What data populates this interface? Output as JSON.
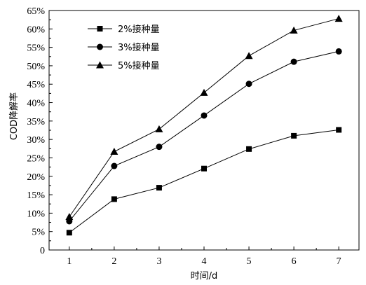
{
  "chart_data": {
    "type": "line",
    "title": "",
    "xlabel": "时间/d",
    "ylabel": "COD降解率",
    "x": [
      1,
      2,
      3,
      4,
      5,
      6,
      7
    ],
    "xlim": [
      0.55,
      7.45
    ],
    "ylim": [
      0,
      65
    ],
    "y_ticks": [
      0,
      5,
      10,
      15,
      20,
      25,
      30,
      35,
      40,
      45,
      50,
      55,
      60,
      65
    ],
    "y_tick_labels": [
      "0",
      "5%",
      "10%",
      "15%",
      "20%",
      "25%",
      "30%",
      "35%",
      "40%",
      "45%",
      "50%",
      "55%",
      "60%",
      "65%"
    ],
    "x_tick_labels": [
      "1",
      "2",
      "3",
      "4",
      "5",
      "6",
      "7"
    ],
    "grid": false,
    "legend_position": "top-left",
    "series": [
      {
        "name": "2%接种量",
        "marker": "square",
        "values": [
          4.7,
          13.8,
          16.9,
          22.1,
          27.4,
          31.0,
          32.6
        ]
      },
      {
        "name": "3%接种量",
        "marker": "circle",
        "values": [
          7.8,
          22.8,
          28.0,
          36.5,
          45.1,
          51.1,
          53.9
        ]
      },
      {
        "name": "5%接种量",
        "marker": "triangle",
        "values": [
          9.0,
          26.7,
          32.8,
          42.7,
          52.7,
          59.6,
          62.8
        ]
      }
    ]
  }
}
